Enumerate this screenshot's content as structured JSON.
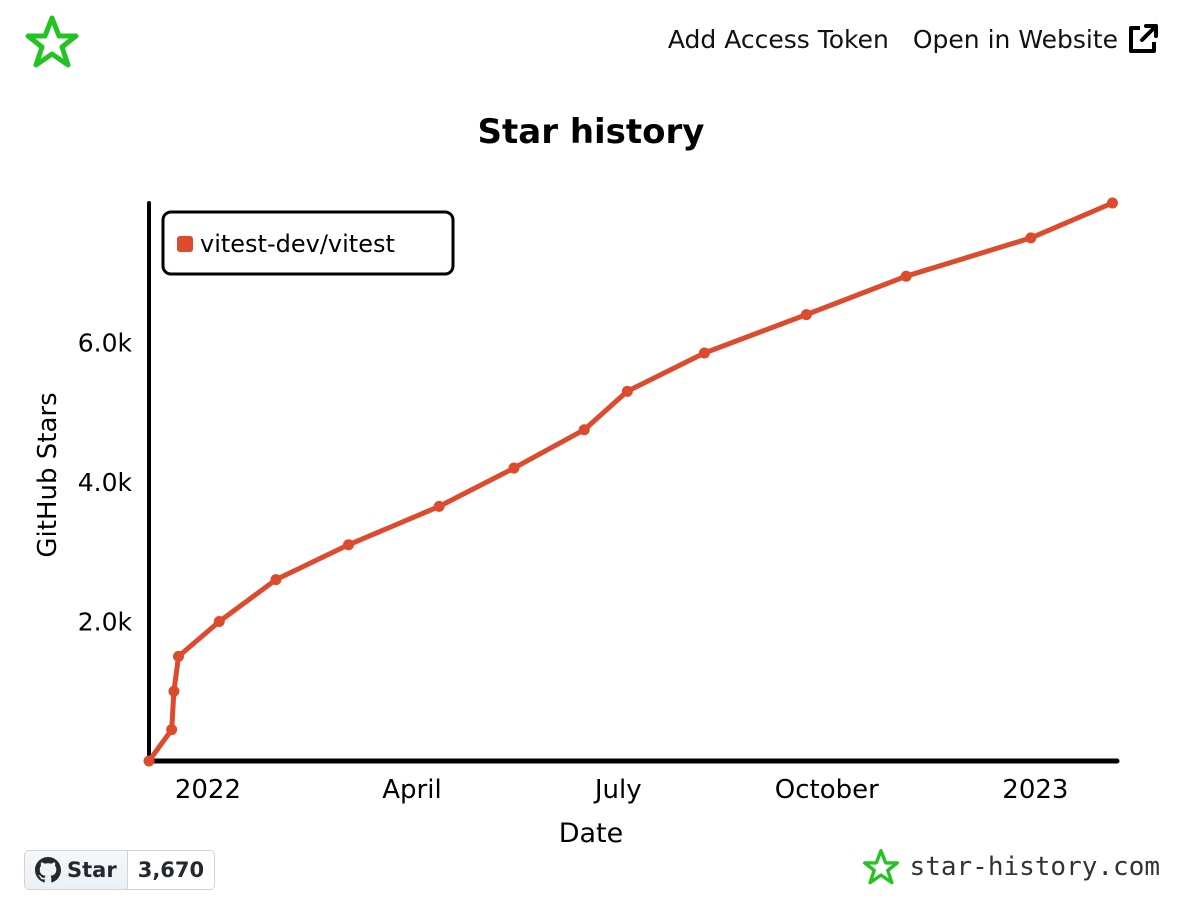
{
  "header": {
    "add_token_label": "Add Access Token",
    "open_website_label": "Open in Website",
    "logo_icon": "star-history-logo-icon",
    "external_icon": "external-link-icon"
  },
  "footer": {
    "github_star_label": "Star",
    "github_star_count": "3,670",
    "brand_text": "star-history.com",
    "github_icon": "github-icon"
  },
  "colors": {
    "series": "#dd4b2e",
    "logo": "#22c322",
    "axis": "#000000"
  },
  "chart_data": {
    "type": "line",
    "title": "Star history",
    "xlabel": "Date",
    "ylabel": "GitHub Stars",
    "x_ticks": [
      {
        "label": "2022",
        "date": "2022-01-01"
      },
      {
        "label": "April",
        "date": "2022-04-01"
      },
      {
        "label": "July",
        "date": "2022-07-01"
      },
      {
        "label": "October",
        "date": "2022-10-01"
      },
      {
        "label": "2023",
        "date": "2023-01-01"
      }
    ],
    "y_ticks": [
      {
        "label": "2.0k",
        "value": 2000
      },
      {
        "label": "4.0k",
        "value": 4000
      },
      {
        "label": "6.0k",
        "value": 6000
      }
    ],
    "xlim": [
      "2021-12-06",
      "2023-02-06"
    ],
    "ylim": [
      0,
      8000
    ],
    "legend": "top-left",
    "grid": false,
    "series": [
      {
        "name": "vitest-dev/vitest",
        "color": "#dd4b2e",
        "points": [
          {
            "x": "2021-12-06",
            "y": 0
          },
          {
            "x": "2021-12-16",
            "y": 450
          },
          {
            "x": "2021-12-17",
            "y": 1000
          },
          {
            "x": "2021-12-19",
            "y": 1500
          },
          {
            "x": "2022-01-06",
            "y": 2000
          },
          {
            "x": "2022-01-31",
            "y": 2600
          },
          {
            "x": "2022-03-04",
            "y": 3100
          },
          {
            "x": "2022-04-13",
            "y": 3650
          },
          {
            "x": "2022-05-16",
            "y": 4200
          },
          {
            "x": "2022-06-16",
            "y": 4750
          },
          {
            "x": "2022-07-05",
            "y": 5300
          },
          {
            "x": "2022-08-08",
            "y": 5850
          },
          {
            "x": "2022-09-22",
            "y": 6400
          },
          {
            "x": "2022-11-05",
            "y": 6950
          },
          {
            "x": "2022-12-30",
            "y": 7500
          },
          {
            "x": "2023-02-04",
            "y": 8000
          }
        ]
      }
    ]
  }
}
